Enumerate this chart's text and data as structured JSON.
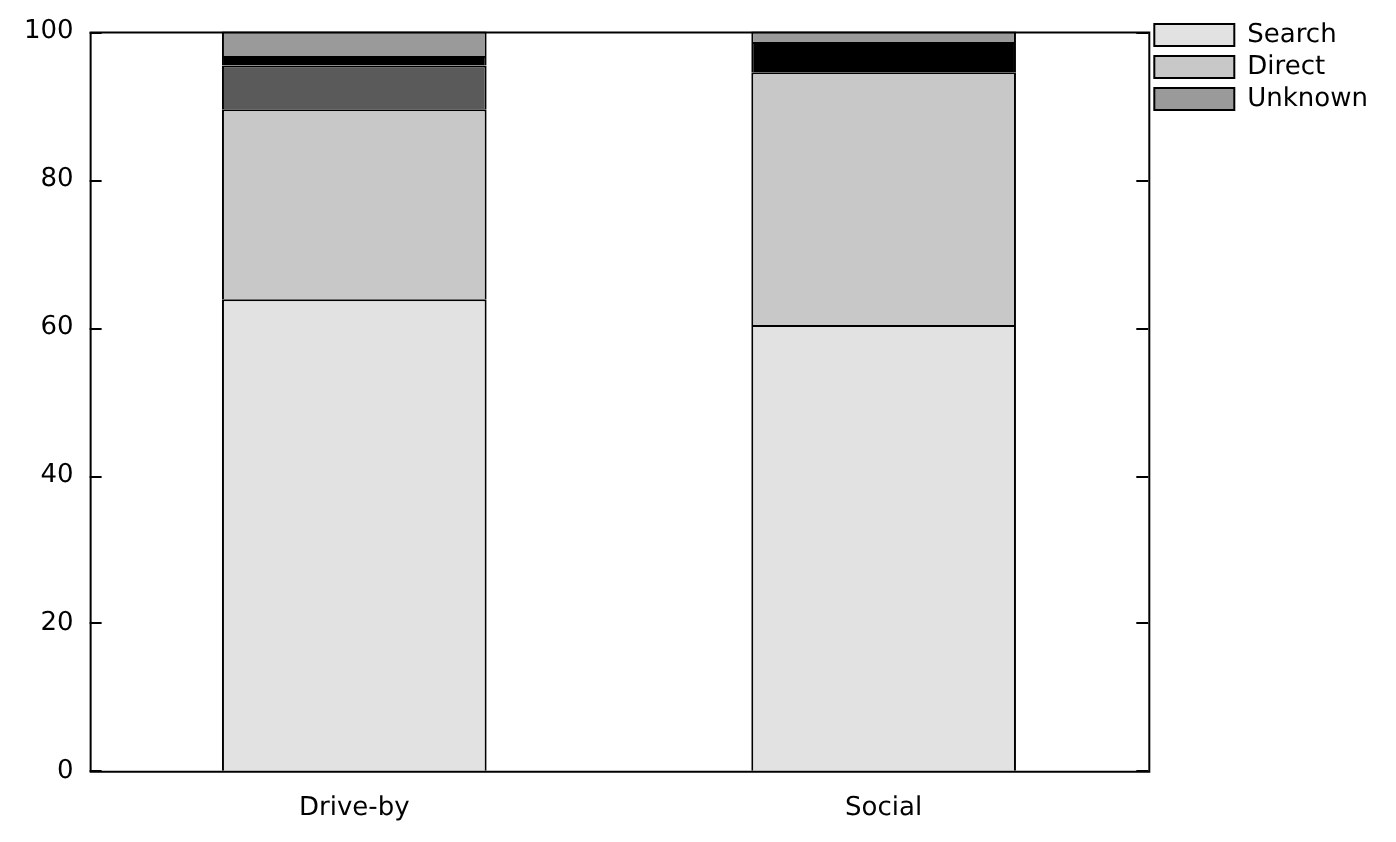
{
  "chart_data": {
    "type": "bar",
    "stacked": true,
    "categories": [
      "Drive-by",
      "Social"
    ],
    "series": [
      {
        "name": "Search",
        "color": "#e2e2e2",
        "values": [
          63.8,
          60.3
        ]
      },
      {
        "name": "Direct",
        "color": "#c8c8c8",
        "values": [
          25.7,
          34.2
        ]
      },
      {
        "color": "#5a5a5a",
        "values": [
          5.9,
          0
        ]
      },
      {
        "color": "#000000",
        "values": [
          1.3,
          4.1
        ]
      },
      {
        "name": "Unknown",
        "color": "#9a9a9a",
        "values": [
          3.3,
          1.4
        ]
      }
    ],
    "ylim": [
      0,
      100
    ],
    "yticks": [
      0,
      20,
      40,
      60,
      80,
      100
    ],
    "grid": false,
    "legend": "top right"
  }
}
